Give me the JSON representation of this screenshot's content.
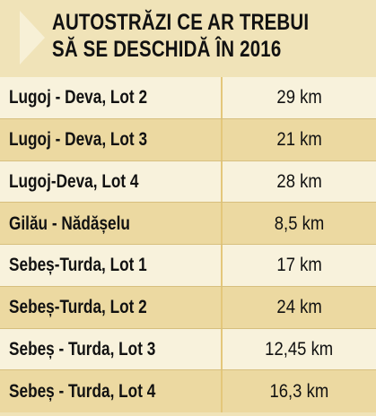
{
  "title_lines": [
    "AUTOSTRĂZI CE AR TREBUI",
    "SĂ SE DESCHIDĂ ÎN 2016"
  ],
  "colors": {
    "background": "#f0e3b8",
    "row_light": "#f8f2dc",
    "row_dark": "#ecd9a1",
    "arrow": "#f7f0d6",
    "text": "#111111"
  },
  "icon": "arrow-triangle-icon",
  "rows": [
    {
      "name": "Lugoj - Deva, Lot 2",
      "length": "29 km"
    },
    {
      "name": "Lugoj - Deva, Lot 3",
      "length": "21 km"
    },
    {
      "name": "Lugoj-Deva, Lot 4",
      "length": "28 km"
    },
    {
      "name": "Gilău - Nădășelu",
      "length": "8,5 km"
    },
    {
      "name": "Sebeș-Turda, Lot 1",
      "length": "17 km"
    },
    {
      "name": "Sebeș-Turda, Lot 2",
      "length": "24 km"
    },
    {
      "name": "Sebeș - Turda, Lot 3",
      "length": "12,45 km"
    },
    {
      "name": "Sebeș - Turda, Lot 4",
      "length": "16,3 km"
    }
  ]
}
